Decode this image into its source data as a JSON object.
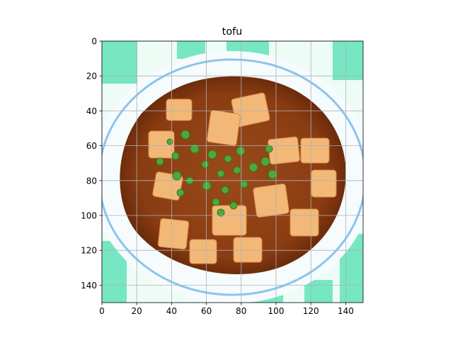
{
  "chart_data": {
    "type": "image",
    "title": "tofu",
    "xlim": [
      0,
      150
    ],
    "ylim": [
      150,
      0
    ],
    "xticks": [
      0,
      20,
      40,
      60,
      80,
      100,
      120,
      140
    ],
    "yticks": [
      0,
      20,
      40,
      60,
      80,
      100,
      120,
      140
    ],
    "xtick_labels": [
      "0",
      "20",
      "40",
      "60",
      "80",
      "100",
      "120",
      "140"
    ],
    "ytick_labels": [
      "0",
      "20",
      "40",
      "60",
      "80",
      "100",
      "120",
      "140"
    ],
    "grid": true,
    "y_axis_inverted": true,
    "image_subject": "mapo-tofu-on-plate",
    "colors": {
      "grid": "#b0b0b0",
      "tablecloth": "#4ee0b0",
      "plate": "#f6fbfd",
      "plate_rim": "#8cc4ee",
      "sauce": "#8a3c12",
      "sauce_dark": "#5e2408",
      "tofu": "#f2b878",
      "scallion": "#4fa83a"
    }
  }
}
